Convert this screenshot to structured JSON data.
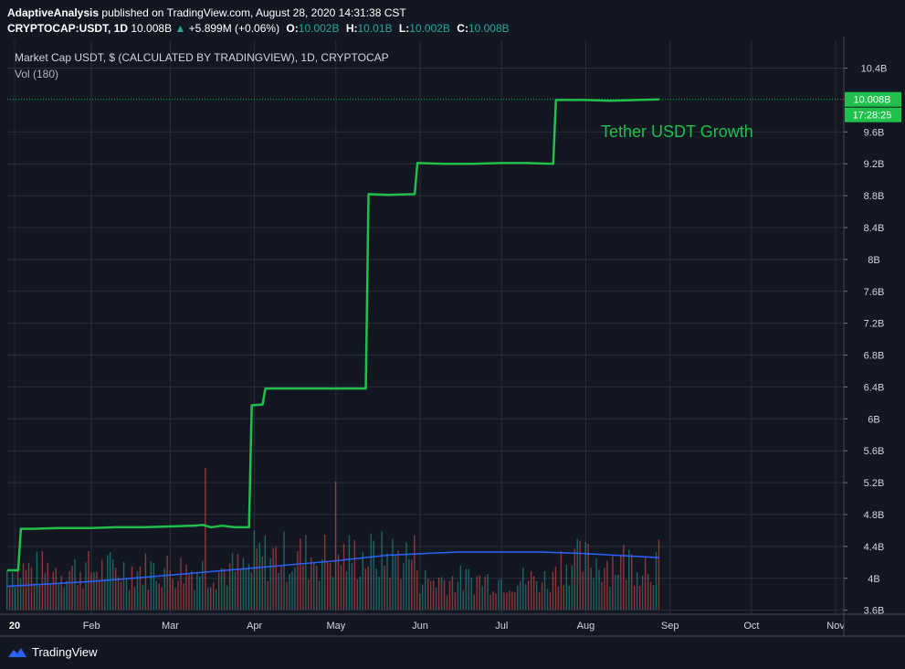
{
  "header": {
    "line1_author": "AdaptiveAnalysis",
    "line1_rest": "published on TradingView.com, August 28, 2020 14:31:38 CST",
    "symbol": "CRYPTOCAP:USDT, 1D",
    "last": "10.008B",
    "change": "+5.899M (+0.06%)",
    "o_label": "O:",
    "o_val": "10.002B",
    "h_label": "H:",
    "h_val": "10.01B",
    "l_label": "L:",
    "l_val": "10.002B",
    "c_label": "C:",
    "c_val": "10.008B"
  },
  "legend": {
    "title": "Market Cap USDT, $ (CALCULATED BY TRADINGVIEW), 1D, CRYPTOCAP",
    "volume": "Vol (180)"
  },
  "footer": {
    "brand": "TradingView"
  },
  "colors": {
    "background": "#131722",
    "line": "#1fc04c",
    "volume_up": "#26a69a",
    "volume_down": "#ef5350",
    "ma": "#2962ff",
    "grid": "#2a2e39"
  },
  "chart_data": {
    "type": "line",
    "annotation": "Tether USDT Growth",
    "price_label": "10.008B",
    "countdown_label": "17:28:25",
    "y_ticks": [
      "10.4B",
      "9.6B",
      "9.2B",
      "8.8B",
      "8.4B",
      "8B",
      "7.6B",
      "7.2B",
      "6.8B",
      "6.4B",
      "6B",
      "5.6B",
      "5.2B",
      "4.8B",
      "4.4B",
      "4B",
      "3.6B"
    ],
    "x_ticks": [
      "20",
      "Feb",
      "Mar",
      "Apr",
      "May",
      "Jun",
      "Jul",
      "Aug",
      "Sep",
      "Oct",
      "Nov"
    ],
    "ylim": [
      3.55,
      10.75
    ],
    "xlim": [
      "2020-01-01",
      "2020-11-04"
    ],
    "grid": true,
    "series": [
      {
        "name": "Market Cap USDT",
        "points": [
          [
            "2020-01-01",
            4.1
          ],
          [
            "2020-01-05",
            4.1
          ],
          [
            "2020-01-06",
            4.62
          ],
          [
            "2020-01-10",
            4.62
          ],
          [
            "2020-01-20",
            4.63
          ],
          [
            "2020-02-01",
            4.63
          ],
          [
            "2020-02-10",
            4.64
          ],
          [
            "2020-02-20",
            4.64
          ],
          [
            "2020-03-01",
            4.65
          ],
          [
            "2020-03-10",
            4.66
          ],
          [
            "2020-03-13",
            4.67
          ],
          [
            "2020-03-16",
            4.64
          ],
          [
            "2020-03-20",
            4.66
          ],
          [
            "2020-03-25",
            4.64
          ],
          [
            "2020-03-30",
            4.64
          ],
          [
            "2020-03-31",
            6.17
          ],
          [
            "2020-04-04",
            6.18
          ],
          [
            "2020-04-05",
            6.38
          ],
          [
            "2020-04-15",
            6.38
          ],
          [
            "2020-05-01",
            6.38
          ],
          [
            "2020-05-12",
            6.38
          ],
          [
            "2020-05-13",
            8.82
          ],
          [
            "2020-05-20",
            8.81
          ],
          [
            "2020-05-30",
            8.82
          ],
          [
            "2020-05-31",
            9.21
          ],
          [
            "2020-06-10",
            9.2
          ],
          [
            "2020-06-20",
            9.2
          ],
          [
            "2020-07-01",
            9.21
          ],
          [
            "2020-07-10",
            9.21
          ],
          [
            "2020-07-20",
            9.2
          ],
          [
            "2020-07-21",
            10.0
          ],
          [
            "2020-08-01",
            10.0
          ],
          [
            "2020-08-10",
            9.99
          ],
          [
            "2020-08-20",
            10.0
          ],
          [
            "2020-08-28",
            10.008
          ]
        ]
      }
    ],
    "volume_ma": [
      [
        "2020-01-01",
        3.9
      ],
      [
        "2020-02-01",
        3.96
      ],
      [
        "2020-03-01",
        4.04
      ],
      [
        "2020-04-01",
        4.13
      ],
      [
        "2020-05-01",
        4.22
      ],
      [
        "2020-05-20",
        4.29
      ],
      [
        "2020-06-15",
        4.33
      ],
      [
        "2020-07-15",
        4.33
      ],
      [
        "2020-08-01",
        4.31
      ],
      [
        "2020-08-28",
        4.26
      ]
    ]
  }
}
